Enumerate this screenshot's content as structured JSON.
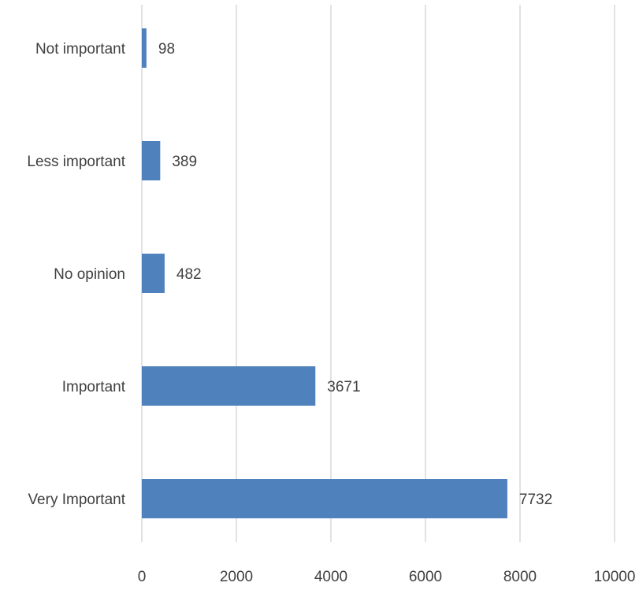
{
  "chart_data": {
    "type": "bar",
    "orientation": "horizontal",
    "categories": [
      "Not important",
      "Less important",
      "No opinion",
      "Important",
      "Very Important"
    ],
    "values": [
      98,
      389,
      482,
      3671,
      7732
    ],
    "data_labels": [
      "98",
      "389",
      "482",
      "3671",
      "7732"
    ],
    "xlim": [
      0,
      10000
    ],
    "xticks": [
      0,
      2000,
      4000,
      6000,
      8000,
      10000
    ],
    "xtick_labels": [
      "0",
      "2000",
      "4000",
      "6000",
      "8000",
      "10000"
    ],
    "title": "",
    "xlabel": "",
    "ylabel": "",
    "grid": "vertical",
    "legend": "none",
    "bar_color": "#4f81bd",
    "grid_color": "#d9d9d9",
    "text_color": "#404040"
  }
}
